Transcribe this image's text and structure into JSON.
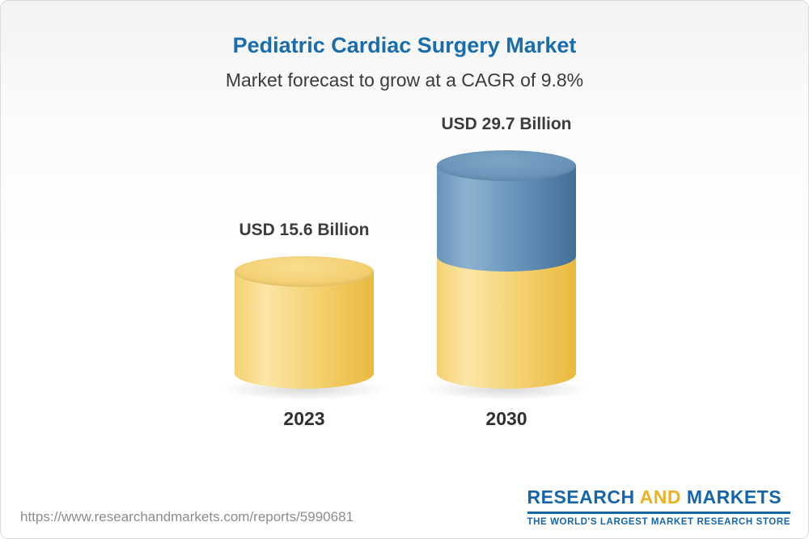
{
  "header": {
    "title": "Pediatric Cardiac Surgery Market",
    "subtitle": "Market forecast to grow at a CAGR of 9.8%"
  },
  "chart_data": {
    "type": "bar",
    "subtype": "cylinder",
    "title": "Pediatric Cardiac Surgery Market",
    "subtitle": "Market forecast to grow at a CAGR of 9.8%",
    "unit": "USD Billion",
    "cagr": "9.8%",
    "categories": [
      "2023",
      "2030"
    ],
    "values": [
      15.6,
      29.7
    ],
    "value_labels": [
      "USD 15.6 Billion",
      "USD 29.7 Billion"
    ],
    "bars": [
      {
        "category": "2023",
        "value": 15.6,
        "label": "USD 15.6 Billion",
        "segments": [
          {
            "value": 15.6,
            "color": "gold"
          }
        ]
      },
      {
        "category": "2030",
        "value": 29.7,
        "label": "USD 29.7 Billion",
        "segments": [
          {
            "value": 15.6,
            "color": "gold"
          },
          {
            "value": 14.1,
            "color": "blue"
          }
        ]
      }
    ],
    "colors": {
      "gold_light": "#fbe6a6",
      "gold_mid": "#f5d171",
      "gold_dark": "#e9b93f",
      "gold_top_light": "#f9dd92",
      "gold_top_dark": "#f0c75c",
      "blue_light": "#8db2d0",
      "blue_mid": "#6794ba",
      "blue_dark": "#446f96",
      "blue_top_light": "#7ca6c7",
      "blue_top_dark": "#5d89ae",
      "title_blue": "#1a6dad",
      "logo_blue": "#1565ab",
      "logo_gold": "#efb021"
    }
  },
  "footer": {
    "url": "https://www.researchandmarkets.com/reports/5990681",
    "logo": {
      "research": "RESEARCH",
      "and": "AND",
      "markets": "MARKETS",
      "tagline": "THE WORLD'S LARGEST MARKET RESEARCH STORE"
    }
  }
}
